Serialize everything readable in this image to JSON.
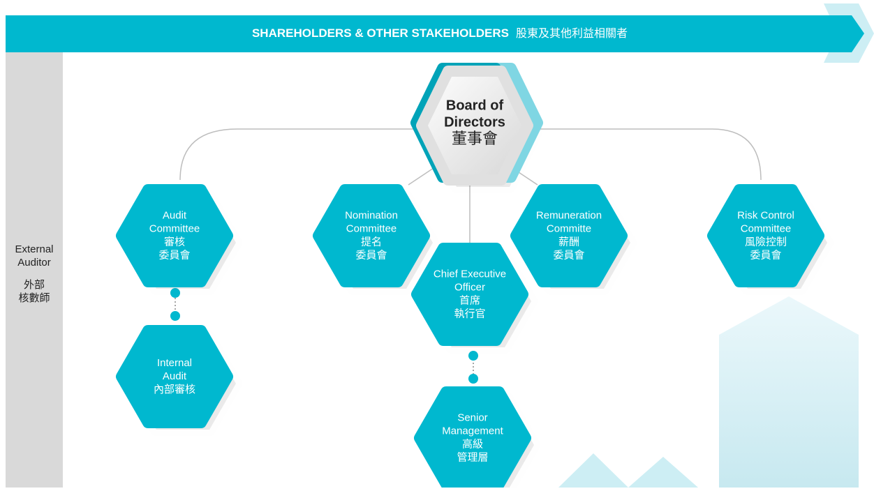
{
  "header": {
    "title": "SHAREHOLDERS & OTHER STAKEHOLDERS",
    "title_zh": "股東及其他利益相關者"
  },
  "side": {
    "label": [
      "External",
      "Auditor"
    ],
    "label_zh": [
      "外部",
      "核數師"
    ]
  },
  "nodes": [
    {
      "label": [
        "Board of",
        "Directors"
      ],
      "label_zh": [
        "董事會"
      ]
    },
    {
      "label": [
        "Audit",
        "Committee"
      ],
      "label_zh": [
        "審核",
        "委員會"
      ]
    },
    {
      "label": [
        "Nomination",
        "Committee"
      ],
      "label_zh": [
        "提名",
        "委員會"
      ]
    },
    {
      "label": [
        "Remuneration",
        "Committe"
      ],
      "label_zh": [
        "薪酬",
        "委員會"
      ]
    },
    {
      "label": [
        "Risk Control",
        "Committee"
      ],
      "label_zh": [
        "風險控制",
        "委員會"
      ]
    },
    {
      "label": [
        "Chief Executive",
        "Officer"
      ],
      "label_zh": [
        "首席",
        "執行官"
      ]
    },
    {
      "label": [
        "Internal",
        "Audit"
      ],
      "label_zh": [
        "內部審核"
      ]
    },
    {
      "label": [
        "Senior",
        "Management"
      ],
      "label_zh": [
        "高級",
        "管理層"
      ]
    }
  ]
}
